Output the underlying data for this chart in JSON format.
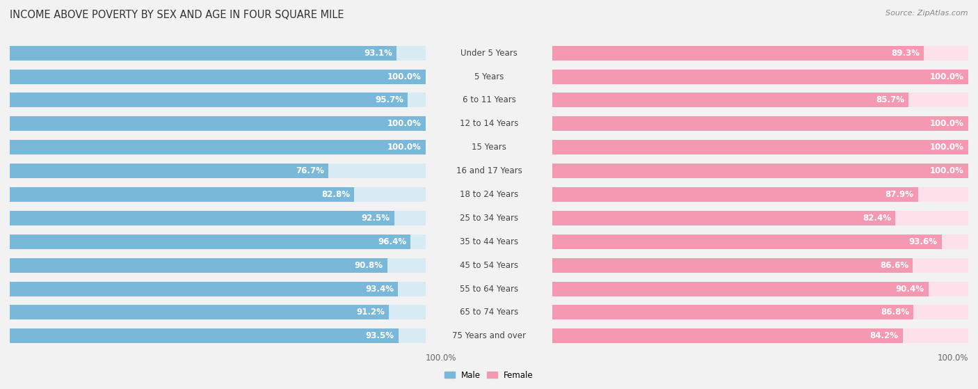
{
  "title": "INCOME ABOVE POVERTY BY SEX AND AGE IN FOUR SQUARE MILE",
  "source": "Source: ZipAtlas.com",
  "categories": [
    "Under 5 Years",
    "5 Years",
    "6 to 11 Years",
    "12 to 14 Years",
    "15 Years",
    "16 and 17 Years",
    "18 to 24 Years",
    "25 to 34 Years",
    "35 to 44 Years",
    "45 to 54 Years",
    "55 to 64 Years",
    "65 to 74 Years",
    "75 Years and over"
  ],
  "male_values": [
    93.1,
    100.0,
    95.7,
    100.0,
    100.0,
    76.7,
    82.8,
    92.5,
    96.4,
    90.8,
    93.4,
    91.2,
    93.5
  ],
  "female_values": [
    89.3,
    100.0,
    85.7,
    100.0,
    100.0,
    100.0,
    87.9,
    82.4,
    93.6,
    86.6,
    90.4,
    86.8,
    84.2
  ],
  "male_color": "#7ab8d9",
  "female_color": "#f598b2",
  "male_label": "Male",
  "female_label": "Female",
  "background_color": "#f2f2f2",
  "bar_bg_male": "#d8eaf4",
  "bar_bg_female": "#fce0ea",
  "bar_height": 0.62,
  "title_fontsize": 10.5,
  "label_fontsize": 8.5,
  "tick_fontsize": 8.5,
  "annotation_fontsize": 8.5
}
